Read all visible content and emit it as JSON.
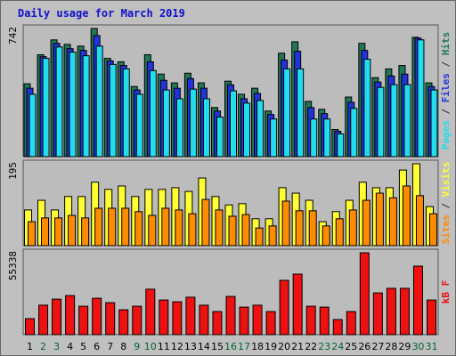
{
  "title": "Daily usage for March 2019",
  "chart_data": [
    {
      "type": "bar",
      "categories": [
        "1",
        "2",
        "3",
        "4",
        "5",
        "6",
        "7",
        "8",
        "9",
        "10",
        "11",
        "12",
        "13",
        "14",
        "15",
        "16",
        "17",
        "18",
        "19",
        "20",
        "21",
        "22",
        "23",
        "24",
        "25",
        "26",
        "27",
        "28",
        "29",
        "30",
        "31"
      ],
      "category_colors": [
        "#000000",
        "#006633",
        "#006633",
        "#000000",
        "#000000",
        "#000000",
        "#000000",
        "#000000",
        "#006633",
        "#006633",
        "#000000",
        "#000000",
        "#000000",
        "#000000",
        "#000000",
        "#006633",
        "#006633",
        "#000000",
        "#000000",
        "#000000",
        "#000000",
        "#000000",
        "#006633",
        "#006633",
        "#000000",
        "#000000",
        "#000000",
        "#000000",
        "#000000",
        "#006633",
        "#006633"
      ],
      "ylim": [
        0,
        742
      ],
      "yticks": [
        742
      ],
      "legend_separator": " / ",
      "series": [
        {
          "name": "Pages",
          "color": "#22ddee",
          "values": [
            361,
            569,
            635,
            605,
            584,
            640,
            534,
            508,
            361,
            498,
            386,
            335,
            391,
            335,
            229,
            381,
            310,
            325,
            218,
            508,
            508,
            218,
            218,
            132,
            279,
            564,
            401,
            417,
            417,
            676,
            386
          ]
        },
        {
          "name": "Files",
          "color": "#2233dd",
          "values": [
            396,
            579,
            656,
            625,
            615,
            701,
            554,
            528,
            386,
            549,
            442,
            396,
            452,
            396,
            264,
            416,
            335,
            366,
            244,
            559,
            610,
            284,
            249,
            147,
            315,
            615,
            432,
            467,
            478,
            686,
            406
          ]
        },
        {
          "name": "Hits",
          "color": "#227755",
          "values": [
            422,
            590,
            676,
            650,
            640,
            742,
            569,
            549,
            406,
            590,
            478,
            427,
            483,
            427,
            284,
            437,
            361,
            396,
            264,
            599,
            665,
            320,
            274,
            157,
            345,
            656,
            457,
            508,
            528,
            691,
            427
          ]
        }
      ]
    },
    {
      "type": "bar",
      "ylim": [
        0,
        195
      ],
      "yticks": [
        195
      ],
      "legend_separator": " / ",
      "series": [
        {
          "name": "Sites",
          "color": "#ff8c00",
          "values": [
            57,
            66,
            66,
            72,
            66,
            89,
            89,
            89,
            81,
            72,
            89,
            85,
            76,
            110,
            85,
            70,
            74,
            42,
            47,
            106,
            83,
            83,
            47,
            64,
            85,
            108,
            125,
            114,
            142,
            119,
            76
          ]
        },
        {
          "name": "Visits",
          "color": "#ffff33",
          "values": [
            85,
            108,
            85,
            117,
            117,
            151,
            134,
            142,
            117,
            134,
            134,
            138,
            129,
            161,
            117,
            97,
            100,
            64,
            64,
            138,
            125,
            108,
            57,
            81,
            108,
            151,
            138,
            138,
            180,
            195,
            93
          ]
        }
      ]
    },
    {
      "type": "bar",
      "ylim": [
        0,
        55338
      ],
      "yticks": [
        55338
      ],
      "legend_separator": " / ",
      "series": [
        {
          "name": "kB F",
          "color": "#ee1111",
          "values": [
            10800,
            19900,
            24000,
            26400,
            19200,
            24600,
            21600,
            16800,
            19200,
            30700,
            23400,
            22200,
            25300,
            19900,
            15600,
            25800,
            18600,
            19900,
            15600,
            36700,
            40900,
            19200,
            18600,
            10200,
            15600,
            55338,
            28200,
            31300,
            31300,
            46300,
            23400
          ]
        }
      ]
    }
  ]
}
